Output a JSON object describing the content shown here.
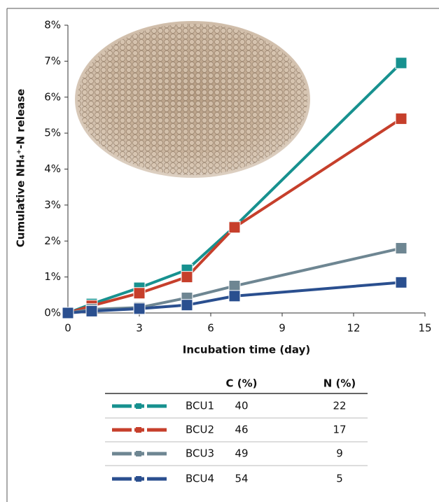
{
  "chart_data": {
    "type": "line",
    "ylabel": "Cumulative NH₄⁺-N release",
    "xlabel": "Incubation time (day)",
    "x": [
      0,
      1,
      3,
      5,
      7,
      14
    ],
    "xlim": [
      0,
      15
    ],
    "xticks": [
      0,
      3,
      6,
      9,
      12,
      15
    ],
    "ylim": [
      0,
      8
    ],
    "yticks": [
      {
        "value": 0,
        "label": "0%"
      },
      {
        "value": 1,
        "label": "1%"
      },
      {
        "value": 2,
        "label": "2%"
      },
      {
        "value": 3,
        "label": "3%"
      },
      {
        "value": 4,
        "label": "4%"
      },
      {
        "value": 5,
        "label": "5%"
      },
      {
        "value": 6,
        "label": "6%"
      },
      {
        "value": 7,
        "label": "7%"
      },
      {
        "value": 8,
        "label": "8%"
      }
    ],
    "series": [
      {
        "name": "BCU1",
        "color": "#17918f",
        "values": [
          0,
          0.25,
          0.7,
          1.2,
          2.4,
          6.95
        ]
      },
      {
        "name": "BCU2",
        "color": "#c63f2b",
        "values": [
          0,
          0.2,
          0.55,
          1.0,
          2.38,
          5.4
        ]
      },
      {
        "name": "BCU3",
        "color": "#6e8692",
        "values": [
          0,
          0.1,
          0.15,
          0.42,
          0.75,
          1.8
        ]
      },
      {
        "name": "BCU4",
        "color": "#2a4f8f",
        "values": [
          0,
          0.05,
          0.12,
          0.22,
          0.47,
          0.85
        ]
      }
    ],
    "table": {
      "columns": [
        "C (%)",
        "N (%)"
      ],
      "rows": [
        [
          40,
          22
        ],
        [
          46,
          17
        ],
        [
          49,
          9
        ],
        [
          54,
          5
        ]
      ]
    }
  }
}
